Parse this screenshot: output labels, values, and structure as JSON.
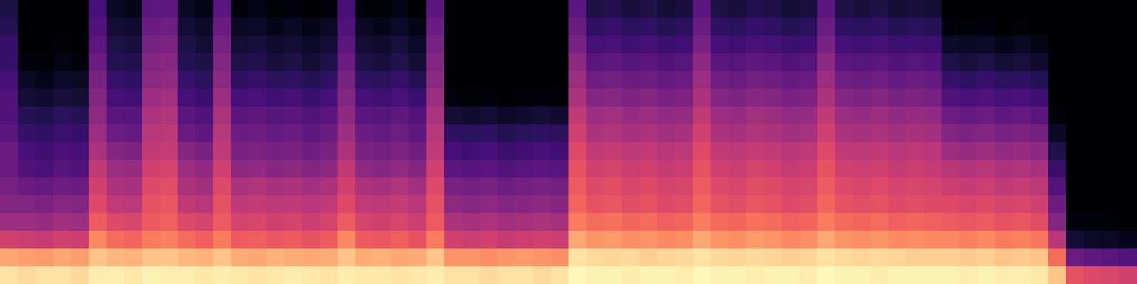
{
  "chart_data": {
    "type": "heatmap",
    "color": "magma",
    "tick_labels": false,
    "xlim": [
      0,
      64
    ],
    "ylim": [
      0,
      16
    ],
    "zlim": [
      -80,
      0
    ],
    "cells": [
      [
        -5,
        -6,
        -5,
        -5,
        -6,
        -3,
        -3,
        -4,
        -2,
        -3,
        -3,
        -4,
        -3,
        -4,
        -5,
        -4,
        -3,
        -4,
        -5,
        -3,
        -4,
        -4,
        -5,
        -4,
        -3,
        -5,
        -5,
        -6,
        -5,
        -5,
        -6,
        -5,
        -1,
        -2,
        -2,
        -3,
        -2,
        -2,
        -3,
        -1,
        -2,
        -2,
        -3,
        -2,
        -2,
        -3,
        -1,
        -2,
        -2,
        -3,
        -2,
        -2,
        -2,
        -2,
        -3,
        -2,
        -3,
        -3,
        -4,
        -10,
        -30,
        -32,
        -33,
        -35
      ],
      [
        -15,
        -16,
        -17,
        -15,
        -16,
        -10,
        -12,
        -13,
        -10,
        -10,
        -12,
        -13,
        -10,
        -14,
        -15,
        -13,
        -14,
        -15,
        -14,
        -10,
        -14,
        -13,
        -15,
        -14,
        -10,
        -18,
        -18,
        -19,
        -18,
        -17,
        -18,
        -19,
        -5,
        -6,
        -7,
        -6,
        -8,
        -7,
        -6,
        -5,
        -6,
        -7,
        -6,
        -7,
        -8,
        -7,
        -5,
        -6,
        -7,
        -6,
        -7,
        -8,
        -8,
        -8,
        -9,
        -8,
        -10,
        -9,
        -10,
        -25,
        -55,
        -57,
        -58,
        -60
      ],
      [
        -35,
        -36,
        -37,
        -35,
        -36,
        -20,
        -25,
        -26,
        -22,
        -21,
        -25,
        -27,
        -22,
        -28,
        -27,
        -29,
        -28,
        -30,
        -28,
        -20,
        -28,
        -29,
        -27,
        -30,
        -22,
        -35,
        -36,
        -35,
        -37,
        -36,
        -35,
        -36,
        -15,
        -18,
        -17,
        -19,
        -18,
        -20,
        -19,
        -15,
        -18,
        -19,
        -17,
        -18,
        -20,
        -19,
        -15,
        -18,
        -19,
        -18,
        -20,
        -19,
        -20,
        -20,
        -21,
        -20,
        -22,
        -21,
        -23,
        -40,
        -72,
        -74,
        -75,
        -76
      ],
      [
        -45,
        -45,
        -46,
        -44,
        -45,
        -28,
        -32,
        -33,
        -28,
        -27,
        -32,
        -34,
        -28,
        -34,
        -33,
        -35,
        -34,
        -36,
        -34,
        -28,
        -34,
        -35,
        -33,
        -36,
        -28,
        -42,
        -43,
        -42,
        -44,
        -43,
        -42,
        -43,
        -22,
        -25,
        -24,
        -26,
        -25,
        -27,
        -26,
        -22,
        -25,
        -26,
        -24,
        -25,
        -27,
        -26,
        -22,
        -25,
        -26,
        -25,
        -27,
        -26,
        -27,
        -28,
        -29,
        -28,
        -30,
        -29,
        -31,
        -50,
        -78,
        -78,
        -79,
        -80
      ],
      [
        -50,
        -50,
        -51,
        -49,
        -50,
        -32,
        -38,
        -39,
        -30,
        -29,
        -38,
        -40,
        -30,
        -38,
        -37,
        -39,
        -38,
        -40,
        -38,
        -32,
        -38,
        -39,
        -37,
        -40,
        -30,
        -48,
        -49,
        -48,
        -50,
        -49,
        -48,
        -49,
        -26,
        -30,
        -29,
        -31,
        -30,
        -32,
        -31,
        -26,
        -30,
        -31,
        -29,
        -30,
        -32,
        -31,
        -26,
        -30,
        -31,
        -30,
        -32,
        -31,
        -32,
        -32,
        -33,
        -32,
        -34,
        -33,
        -35,
        -55,
        -80,
        -80,
        -80,
        -80
      ],
      [
        -52,
        -55,
        -56,
        -54,
        -55,
        -35,
        -42,
        -43,
        -32,
        -31,
        -42,
        -44,
        -32,
        -42,
        -41,
        -43,
        -42,
        -44,
        -42,
        -35,
        -42,
        -43,
        -41,
        -44,
        -32,
        -52,
        -53,
        -52,
        -54,
        -53,
        -52,
        -53,
        -28,
        -32,
        -31,
        -33,
        -32,
        -34,
        -33,
        -28,
        -32,
        -33,
        -31,
        -32,
        -34,
        -33,
        -28,
        -32,
        -33,
        -32,
        -34,
        -33,
        -34,
        -36,
        -37,
        -36,
        -38,
        -37,
        -39,
        -60,
        -80,
        -80,
        -80,
        -80
      ],
      [
        -55,
        -60,
        -61,
        -59,
        -60,
        -38,
        -45,
        -46,
        -35,
        -34,
        -45,
        -47,
        -35,
        -48,
        -47,
        -49,
        -48,
        -50,
        -48,
        -38,
        -48,
        -49,
        -47,
        -50,
        -35,
        -58,
        -59,
        -58,
        -60,
        -59,
        -58,
        -59,
        -30,
        -35,
        -34,
        -36,
        -35,
        -37,
        -36,
        -30,
        -35,
        -36,
        -34,
        -35,
        -37,
        -36,
        -30,
        -35,
        -36,
        -35,
        -37,
        -36,
        -37,
        -40,
        -41,
        -40,
        -42,
        -41,
        -43,
        -65,
        -80,
        -80,
        -80,
        -80
      ],
      [
        -55,
        -62,
        -63,
        -61,
        -62,
        -42,
        -50,
        -51,
        -38,
        -37,
        -50,
        -52,
        -38,
        -52,
        -51,
        -53,
        -52,
        -54,
        -52,
        -42,
        -52,
        -53,
        -51,
        -54,
        -38,
        -62,
        -63,
        -62,
        -64,
        -63,
        -62,
        -63,
        -32,
        -38,
        -37,
        -39,
        -38,
        -40,
        -39,
        -32,
        -38,
        -39,
        -37,
        -38,
        -40,
        -39,
        -32,
        -38,
        -39,
        -38,
        -40,
        -39,
        -40,
        -45,
        -46,
        -45,
        -47,
        -46,
        -48,
        -70,
        -80,
        -80,
        -80,
        -80
      ],
      [
        -58,
        -65,
        -66,
        -64,
        -65,
        -45,
        -55,
        -56,
        -40,
        -39,
        -55,
        -57,
        -40,
        -55,
        -54,
        -56,
        -55,
        -57,
        -55,
        -45,
        -55,
        -56,
        -54,
        -57,
        -40,
        -66,
        -67,
        -66,
        -68,
        -67,
        -66,
        -67,
        -35,
        -42,
        -41,
        -43,
        -42,
        -44,
        -43,
        -35,
        -42,
        -43,
        -41,
        -42,
        -44,
        -43,
        -35,
        -42,
        -43,
        -42,
        -44,
        -43,
        -44,
        -50,
        -51,
        -50,
        -52,
        -51,
        -53,
        -75,
        -80,
        -80,
        -80,
        -80
      ],
      [
        -60,
        -68,
        -69,
        -67,
        -68,
        -48,
        -58,
        -59,
        -42,
        -41,
        -58,
        -60,
        -42,
        -58,
        -57,
        -59,
        -58,
        -60,
        -58,
        -48,
        -58,
        -59,
        -57,
        -60,
        -42,
        -72,
        -73,
        -72,
        -74,
        -73,
        -72,
        -73,
        -38,
        -45,
        -44,
        -46,
        -45,
        -47,
        -46,
        -38,
        -45,
        -46,
        -44,
        -45,
        -47,
        -46,
        -38,
        -45,
        -46,
        -45,
        -47,
        -46,
        -47,
        -55,
        -56,
        -55,
        -57,
        -56,
        -58,
        -78,
        -80,
        -80,
        -80,
        -80
      ],
      [
        -60,
        -72,
        -73,
        -71,
        -72,
        -50,
        -62,
        -63,
        -45,
        -44,
        -62,
        -64,
        -45,
        -62,
        -61,
        -63,
        -62,
        -64,
        -62,
        -50,
        -62,
        -63,
        -61,
        -64,
        -45,
        -78,
        -79,
        -78,
        -80,
        -79,
        -78,
        -79,
        -42,
        -50,
        -49,
        -51,
        -50,
        -52,
        -51,
        -42,
        -50,
        -51,
        -49,
        -50,
        -52,
        -51,
        -42,
        -50,
        -51,
        -50,
        -52,
        -51,
        -52,
        -60,
        -61,
        -60,
        -62,
        -61,
        -63,
        -80,
        -80,
        -80,
        -80,
        -80
      ],
      [
        -62,
        -75,
        -76,
        -74,
        -75,
        -52,
        -65,
        -66,
        -48,
        -47,
        -65,
        -67,
        -48,
        -66,
        -65,
        -67,
        -66,
        -68,
        -66,
        -52,
        -66,
        -67,
        -65,
        -68,
        -48,
        -80,
        -80,
        -80,
        -80,
        -80,
        -80,
        -80,
        -45,
        -54,
        -53,
        -55,
        -54,
        -56,
        -55,
        -45,
        -54,
        -55,
        -53,
        -54,
        -56,
        -55,
        -45,
        -54,
        -55,
        -54,
        -56,
        -55,
        -56,
        -65,
        -66,
        -65,
        -67,
        -66,
        -68,
        -80,
        -80,
        -80,
        -80,
        -80
      ],
      [
        -65,
        -78,
        -79,
        -77,
        -78,
        -55,
        -68,
        -69,
        -50,
        -49,
        -68,
        -70,
        -50,
        -70,
        -69,
        -71,
        -70,
        -72,
        -70,
        -55,
        -70,
        -71,
        -69,
        -72,
        -50,
        -80,
        -80,
        -80,
        -80,
        -80,
        -80,
        -80,
        -48,
        -58,
        -57,
        -59,
        -58,
        -60,
        -59,
        -48,
        -58,
        -59,
        -57,
        -58,
        -60,
        -59,
        -48,
        -58,
        -59,
        -58,
        -60,
        -59,
        -60,
        -70,
        -71,
        -70,
        -72,
        -71,
        -73,
        -80,
        -80,
        -80,
        -80,
        -80
      ],
      [
        -65,
        -80,
        -80,
        -79,
        -80,
        -58,
        -70,
        -71,
        -52,
        -51,
        -70,
        -72,
        -52,
        -72,
        -71,
        -73,
        -72,
        -74,
        -72,
        -58,
        -72,
        -73,
        -71,
        -74,
        -52,
        -80,
        -80,
        -80,
        -80,
        -80,
        -80,
        -80,
        -52,
        -62,
        -61,
        -63,
        -62,
        -64,
        -63,
        -52,
        -62,
        -63,
        -61,
        -62,
        -64,
        -63,
        -52,
        -62,
        -63,
        -62,
        -64,
        -63,
        -64,
        -74,
        -75,
        -74,
        -76,
        -75,
        -77,
        -80,
        -80,
        -80,
        -80,
        -80
      ],
      [
        -68,
        -80,
        -80,
        -80,
        -80,
        -60,
        -72,
        -73,
        -55,
        -54,
        -72,
        -74,
        -55,
        -75,
        -74,
        -76,
        -75,
        -77,
        -75,
        -60,
        -75,
        -76,
        -74,
        -77,
        -55,
        -80,
        -80,
        -80,
        -80,
        -80,
        -80,
        -80,
        -55,
        -66,
        -65,
        -67,
        -66,
        -68,
        -67,
        -55,
        -66,
        -67,
        -65,
        -66,
        -68,
        -67,
        -55,
        -66,
        -67,
        -66,
        -68,
        -67,
        -68,
        -78,
        -79,
        -78,
        -80,
        -79,
        -80,
        -80,
        -80,
        -80,
        -80,
        -80
      ],
      [
        -70,
        -80,
        -80,
        -80,
        -80,
        -62,
        -75,
        -76,
        -58,
        -57,
        -75,
        -77,
        -58,
        -78,
        -77,
        -79,
        -78,
        -80,
        -78,
        -62,
        -78,
        -79,
        -77,
        -80,
        -58,
        -80,
        -80,
        -80,
        -80,
        -80,
        -80,
        -80,
        -58,
        -70,
        -69,
        -71,
        -70,
        -72,
        -71,
        -58,
        -70,
        -71,
        -69,
        -70,
        -72,
        -71,
        -58,
        -70,
        -71,
        -70,
        -72,
        -71,
        -72,
        -80,
        -80,
        -80,
        -80,
        -80,
        -80,
        -80,
        -80,
        -80,
        -80,
        -80
      ]
    ]
  }
}
